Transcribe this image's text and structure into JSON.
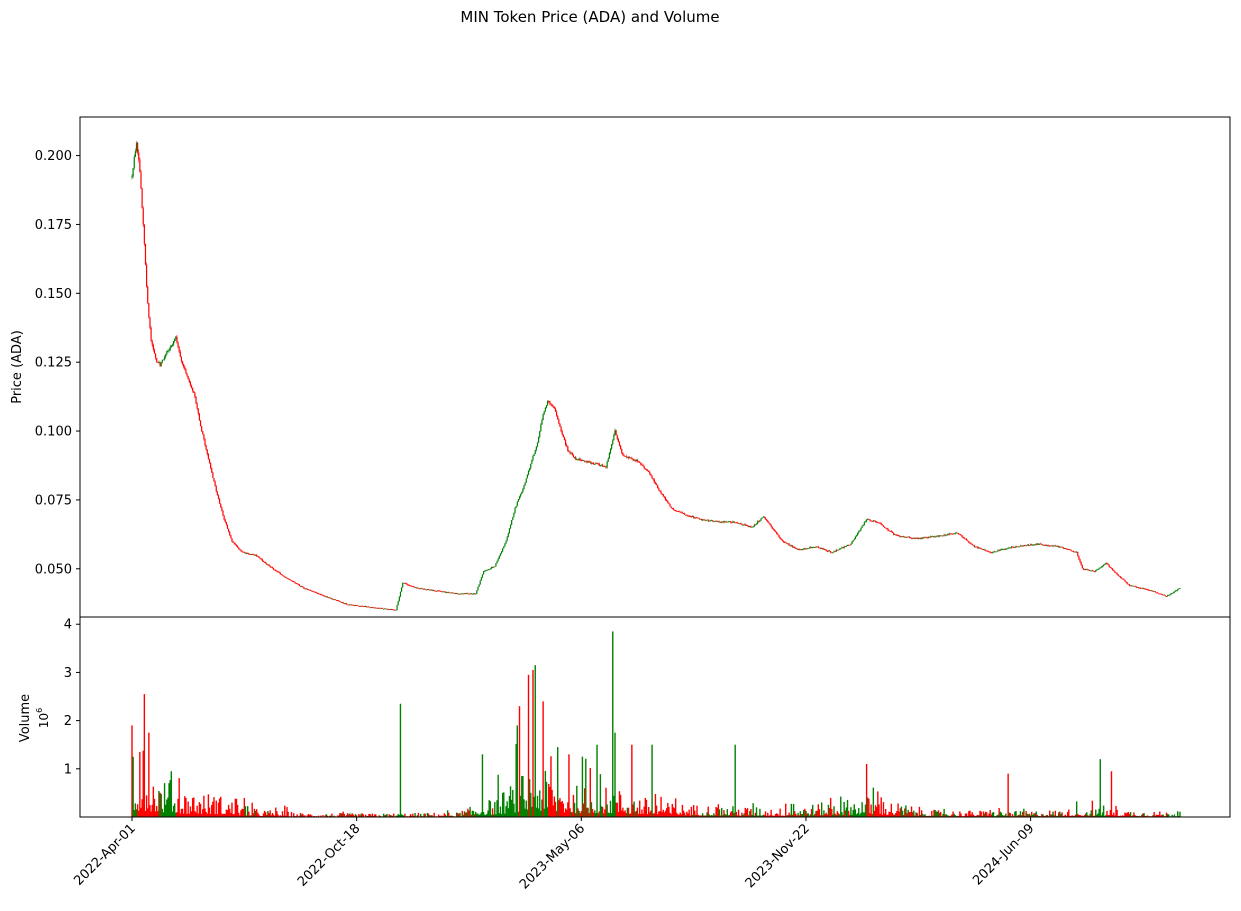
{
  "figure_title": "MIN Token Price (ADA) and Volume",
  "colors": {
    "up": "#008000",
    "down": "#ff0000",
    "axis": "#000000",
    "background": "#ffffff"
  },
  "chart_data": [
    {
      "type": "candlestick",
      "panel": "price",
      "title": "MIN Token Price (ADA) and Volume",
      "ylabel": "Price (ADA)",
      "xlabel": "",
      "ylim": [
        0.0325,
        0.214
      ],
      "yticks": [
        "0.050",
        "0.075",
        "0.100",
        "0.125",
        "0.150",
        "0.175",
        "0.200"
      ],
      "grid": false,
      "x_start": "2022-04-01",
      "x_end": "2024-10-20",
      "series": [
        {
          "price_path": [
            [
              "2022-04-01",
              0.192
            ],
            [
              "2022-04-03",
              0.2
            ],
            [
              "2022-04-05",
              0.204
            ],
            [
              "2022-04-07",
              0.199
            ],
            [
              "2022-04-09",
              0.188
            ],
            [
              "2022-04-11",
              0.175
            ],
            [
              "2022-04-13",
              0.16
            ],
            [
              "2022-04-15",
              0.146
            ],
            [
              "2022-04-18",
              0.133
            ],
            [
              "2022-04-22",
              0.126
            ],
            [
              "2022-04-26",
              0.124
            ],
            [
              "2022-05-01",
              0.128
            ],
            [
              "2022-05-06",
              0.131
            ],
            [
              "2022-05-10",
              0.134
            ],
            [
              "2022-05-14",
              0.127
            ],
            [
              "2022-05-20",
              0.12
            ],
            [
              "2022-05-26",
              0.114
            ],
            [
              "2022-06-01",
              0.102
            ],
            [
              "2022-06-08",
              0.09
            ],
            [
              "2022-06-15",
              0.078
            ],
            [
              "2022-06-22",
              0.068
            ],
            [
              "2022-06-29",
              0.06
            ],
            [
              "2022-07-08",
              0.056
            ],
            [
              "2022-07-20",
              0.055
            ],
            [
              "2022-08-01",
              0.051
            ],
            [
              "2022-08-15",
              0.047
            ],
            [
              "2022-09-01",
              0.043
            ],
            [
              "2022-09-20",
              0.04
            ],
            [
              "2022-10-10",
              0.037
            ],
            [
              "2022-11-01",
              0.036
            ],
            [
              "2022-11-22",
              0.035
            ],
            [
              "2022-11-28",
              0.045
            ],
            [
              "2022-12-10",
              0.043
            ],
            [
              "2022-12-28",
              0.042
            ],
            [
              "2023-01-15",
              0.041
            ],
            [
              "2023-02-01",
              0.041
            ],
            [
              "2023-02-08",
              0.049
            ],
            [
              "2023-02-18",
              0.051
            ],
            [
              "2023-02-28",
              0.06
            ],
            [
              "2023-03-08",
              0.072
            ],
            [
              "2023-03-15",
              0.079
            ],
            [
              "2023-03-22",
              0.088
            ],
            [
              "2023-03-28",
              0.096
            ],
            [
              "2023-04-02",
              0.106
            ],
            [
              "2023-04-06",
              0.111
            ],
            [
              "2023-04-12",
              0.108
            ],
            [
              "2023-04-18",
              0.1
            ],
            [
              "2023-04-24",
              0.093
            ],
            [
              "2023-05-01",
              0.09
            ],
            [
              "2023-05-10",
              0.089
            ],
            [
              "2023-05-20",
              0.088
            ],
            [
              "2023-05-28",
              0.087
            ],
            [
              "2023-06-05",
              0.1
            ],
            [
              "2023-06-12",
              0.091
            ],
            [
              "2023-06-25",
              0.089
            ],
            [
              "2023-07-05",
              0.085
            ],
            [
              "2023-07-15",
              0.078
            ],
            [
              "2023-07-25",
              0.072
            ],
            [
              "2023-08-05",
              0.07
            ],
            [
              "2023-08-20",
              0.068
            ],
            [
              "2023-09-05",
              0.067
            ],
            [
              "2023-09-20",
              0.067
            ],
            [
              "2023-10-05",
              0.065
            ],
            [
              "2023-10-15",
              0.069
            ],
            [
              "2023-11-01",
              0.06
            ],
            [
              "2023-11-15",
              0.057
            ],
            [
              "2023-12-01",
              0.058
            ],
            [
              "2023-12-15",
              0.056
            ],
            [
              "2024-01-01",
              0.059
            ],
            [
              "2024-01-15",
              0.068
            ],
            [
              "2024-01-25",
              0.067
            ],
            [
              "2024-02-10",
              0.062
            ],
            [
              "2024-03-01",
              0.061
            ],
            [
              "2024-03-20",
              0.062
            ],
            [
              "2024-04-05",
              0.063
            ],
            [
              "2024-04-20",
              0.058
            ],
            [
              "2024-05-05",
              0.056
            ],
            [
              "2024-05-25",
              0.058
            ],
            [
              "2024-06-15",
              0.059
            ],
            [
              "2024-07-05",
              0.058
            ],
            [
              "2024-07-20",
              0.056
            ],
            [
              "2024-07-25",
              0.05
            ],
            [
              "2024-08-05",
              0.049
            ],
            [
              "2024-08-15",
              0.052
            ],
            [
              "2024-08-25",
              0.048
            ],
            [
              "2024-09-05",
              0.044
            ],
            [
              "2024-09-25",
              0.042
            ],
            [
              "2024-10-08",
              0.04
            ],
            [
              "2024-10-20",
              0.043
            ]
          ]
        }
      ]
    },
    {
      "type": "bar",
      "panel": "volume",
      "ylabel": "Volume",
      "yscale_label": "10",
      "yscale_exp": "6",
      "ylim": [
        0,
        4.15
      ],
      "yticks": [
        "1",
        "2",
        "3",
        "4"
      ],
      "grid": false,
      "xticks": [
        {
          "label": "2022-Apr-01",
          "date": "2022-04-01"
        },
        {
          "label": "2022-Oct-18",
          "date": "2022-10-18"
        },
        {
          "label": "2023-May-06",
          "date": "2023-05-06"
        },
        {
          "label": "2023-Nov-22",
          "date": "2023-11-22"
        },
        {
          "label": "2024-Jun-09",
          "date": "2024-06-09"
        }
      ],
      "volume_envelope_millions": [
        [
          "2022-04-01",
          0.9
        ],
        [
          "2022-04-15",
          0.8
        ],
        [
          "2022-05-15",
          0.45
        ],
        [
          "2022-06-15",
          0.4
        ],
        [
          "2022-07-15",
          0.15
        ],
        [
          "2022-09-01",
          0.07
        ],
        [
          "2022-11-01",
          0.06
        ],
        [
          "2023-01-15",
          0.08
        ],
        [
          "2023-02-20",
          0.35
        ],
        [
          "2023-03-25",
          0.9
        ],
        [
          "2023-04-20",
          0.55
        ],
        [
          "2023-06-05",
          0.5
        ],
        [
          "2023-07-15",
          0.25
        ],
        [
          "2023-09-01",
          0.2
        ],
        [
          "2023-11-01",
          0.15
        ],
        [
          "2024-01-15",
          0.35
        ],
        [
          "2024-03-15",
          0.12
        ],
        [
          "2024-06-01",
          0.1
        ],
        [
          "2024-08-01",
          0.15
        ],
        [
          "2024-10-20",
          0.08
        ]
      ],
      "volume_spikes_millions": [
        [
          "2022-04-01",
          1.9,
          "down"
        ],
        [
          "2022-04-02",
          1.25,
          "up"
        ],
        [
          "2022-04-08",
          1.35,
          "down"
        ],
        [
          "2022-04-12",
          2.55,
          "down"
        ],
        [
          "2022-04-16",
          1.75,
          "down"
        ],
        [
          "2022-05-06",
          0.95,
          "up"
        ],
        [
          "2022-11-26",
          2.35,
          "up"
        ],
        [
          "2023-02-07",
          1.3,
          "up"
        ],
        [
          "2023-03-10",
          1.9,
          "up"
        ],
        [
          "2023-03-12",
          2.3,
          "down"
        ],
        [
          "2023-03-20",
          2.95,
          "down"
        ],
        [
          "2023-03-24",
          3.05,
          "down"
        ],
        [
          "2023-03-26",
          3.15,
          "up"
        ],
        [
          "2023-04-02",
          2.4,
          "down"
        ],
        [
          "2023-04-15",
          1.45,
          "up"
        ],
        [
          "2023-04-25",
          1.3,
          "down"
        ],
        [
          "2023-05-20",
          1.5,
          "up"
        ],
        [
          "2023-06-03",
          3.85,
          "up"
        ],
        [
          "2023-06-05",
          1.75,
          "up"
        ],
        [
          "2023-06-20",
          1.5,
          "down"
        ],
        [
          "2023-07-08",
          1.5,
          "up"
        ],
        [
          "2023-09-20",
          1.5,
          "up"
        ],
        [
          "2024-01-15",
          1.1,
          "down"
        ],
        [
          "2024-05-20",
          0.9,
          "down"
        ],
        [
          "2024-08-10",
          1.2,
          "up"
        ],
        [
          "2024-08-20",
          0.95,
          "down"
        ]
      ]
    }
  ]
}
